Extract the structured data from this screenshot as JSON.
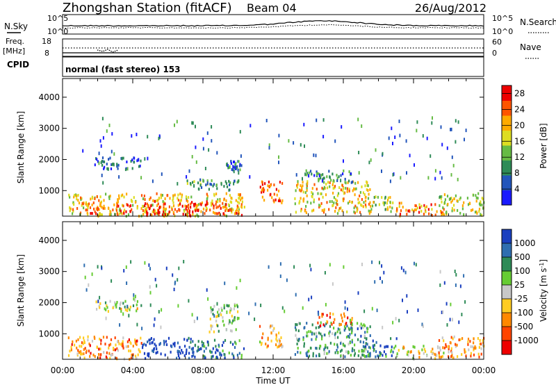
{
  "header": {
    "station": "Zhongshan Station (fitACF)",
    "beam": "Beam 04",
    "date": "26/Aug/2012"
  },
  "sky_panel": {
    "left_label": "N.Sky",
    "right_label": "N.Search",
    "ticks": [
      "10^5",
      "10^0"
    ]
  },
  "freq_panel": {
    "left_label_1": "Freq.",
    "left_label_2": "[MHz]",
    "left_ticks": [
      "18",
      "8"
    ],
    "right_label": "Nave",
    "right_ticks": [
      "60",
      "0"
    ]
  },
  "cpid": {
    "label": "CPID",
    "mode_text": "normal (fast stereo) 153"
  },
  "chart_data": [
    {
      "type": "heatmap",
      "title": "",
      "xlabel": "Time UT",
      "ylabel": "Slant Range [km]",
      "x_ticks": [
        "00:00",
        "04:00",
        "08:00",
        "12:00",
        "16:00",
        "20:00",
        "00:00"
      ],
      "x_range_hours": [
        0,
        24
      ],
      "y_ticks": [
        1000,
        2000,
        3000,
        4000
      ],
      "ylim": [
        180,
        4600
      ],
      "colorbar": {
        "label": "Power [dB]",
        "ticks": [
          "4",
          "8",
          "12",
          "16",
          "20",
          "24",
          "28"
        ],
        "range": [
          0,
          30
        ],
        "colors": [
          "#1a1aff",
          "#2255bb",
          "#2e8b57",
          "#66bb44",
          "#dddd22",
          "#ffaa00",
          "#ff5500",
          "#ee0000"
        ]
      },
      "regions": [
        {
          "t0": 0.3,
          "t1": 10.4,
          "r0": 220,
          "r1": 950,
          "level": 0.62
        },
        {
          "t0": 1.5,
          "t1": 4.0,
          "r0": 300,
          "r1": 600,
          "level": 0.85
        },
        {
          "t0": 4.5,
          "t1": 8.2,
          "r0": 220,
          "r1": 700,
          "level": 0.9
        },
        {
          "t0": 8.5,
          "t1": 10.2,
          "r0": 250,
          "r1": 650,
          "level": 0.85
        },
        {
          "t0": 1.8,
          "t1": 4.5,
          "r0": 1700,
          "r1": 2100,
          "level": 0.18
        },
        {
          "t0": 9.3,
          "t1": 10.2,
          "r0": 1700,
          "r1": 2000,
          "level": 0.22
        },
        {
          "t0": 7.0,
          "t1": 10.0,
          "r0": 1050,
          "r1": 1400,
          "level": 0.35
        },
        {
          "t0": 11.2,
          "t1": 12.5,
          "r0": 650,
          "r1": 1400,
          "level": 0.82
        },
        {
          "t0": 13.2,
          "t1": 17.5,
          "r0": 300,
          "r1": 1350,
          "level": 0.6
        },
        {
          "t0": 13.8,
          "t1": 16.5,
          "r0": 1300,
          "r1": 1700,
          "level": 0.3
        },
        {
          "t0": 17.5,
          "t1": 19.0,
          "r0": 300,
          "r1": 850,
          "level": 0.48
        },
        {
          "t0": 19.0,
          "t1": 21.7,
          "r0": 220,
          "r1": 650,
          "level": 0.78
        },
        {
          "t0": 21.4,
          "t1": 24.0,
          "r0": 250,
          "r1": 950,
          "level": 0.55
        }
      ]
    },
    {
      "type": "heatmap",
      "title": "",
      "xlabel": "Time UT",
      "ylabel": "Slant Range [km]",
      "x_ticks": [
        "00:00",
        "04:00",
        "08:00",
        "12:00",
        "16:00",
        "20:00",
        "00:00"
      ],
      "x_range_hours": [
        0,
        24
      ],
      "y_ticks": [
        1000,
        2000,
        3000,
        4000
      ],
      "ylim": [
        180,
        4600
      ],
      "colorbar": {
        "label": "Velocity [m s^-1]",
        "ticks": [
          "1000",
          "500",
          "100",
          "25",
          "-25",
          "-100",
          "-500",
          "-1000"
        ],
        "colors": [
          "#1a3fbf",
          "#2f6eb0",
          "#2e8b57",
          "#66cc33",
          "#c8c8c8",
          "#ffcc22",
          "#ff8800",
          "#ff4400",
          "#ee0000"
        ]
      },
      "regions": [
        {
          "t0": 0.3,
          "t1": 4.5,
          "r0": 220,
          "r1": 950,
          "level": 0.72
        },
        {
          "t0": 4.5,
          "t1": 7.5,
          "r0": 250,
          "r1": 900,
          "level": 0.05
        },
        {
          "t0": 7.5,
          "t1": 10.3,
          "r0": 250,
          "r1": 850,
          "level": 0.2
        },
        {
          "t0": 1.8,
          "t1": 4.5,
          "r0": 1750,
          "r1": 2100,
          "level": 0.48
        },
        {
          "t0": 8.3,
          "t1": 10.0,
          "r0": 1100,
          "r1": 2000,
          "level": 0.48
        },
        {
          "t0": 11.2,
          "t1": 12.5,
          "r0": 600,
          "r1": 1300,
          "level": 0.6
        },
        {
          "t0": 13.2,
          "t1": 17.5,
          "r0": 300,
          "r1": 1400,
          "level": 0.3
        },
        {
          "t0": 14.5,
          "t1": 16.5,
          "r0": 1300,
          "r1": 1700,
          "level": 0.78
        },
        {
          "t0": 17.0,
          "t1": 19.0,
          "r0": 300,
          "r1": 900,
          "level": 0.2
        },
        {
          "t0": 19.0,
          "t1": 21.7,
          "r0": 220,
          "r1": 650,
          "level": 0.55
        },
        {
          "t0": 21.4,
          "t1": 24.0,
          "r0": 250,
          "r1": 950,
          "level": 0.68
        }
      ]
    }
  ]
}
